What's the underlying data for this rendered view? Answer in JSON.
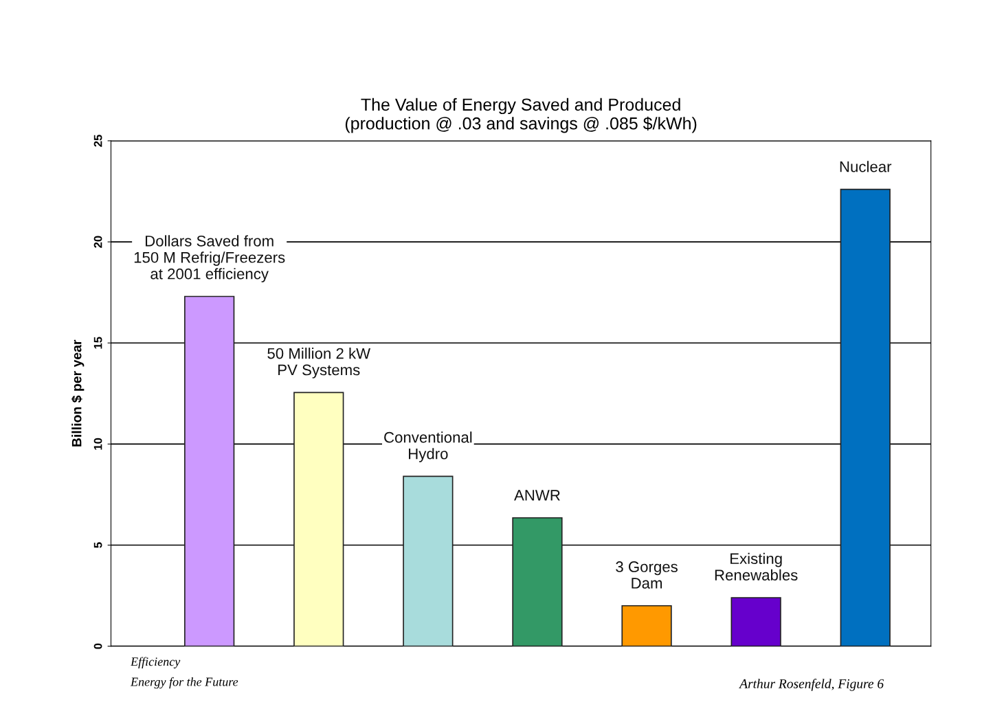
{
  "chart_data": {
    "type": "bar",
    "title": "The Value of Energy Saved and Produced\n(production @ .03 and savings @ .085 $/kWh)",
    "ylabel": "Billion $ per year",
    "categories": [
      "Dollars Saved from\n150 M Refrig/Freezers\nat 2001 efficiency",
      "50 Million 2 kW\nPV Systems",
      "Conventional\nHydro",
      "ANWR",
      "3 Gorges\nDam",
      "Existing\nRenewables",
      "Nuclear"
    ],
    "values": [
      17.3,
      12.55,
      8.4,
      6.35,
      2.0,
      2.4,
      22.6
    ],
    "colors": [
      "#cc99ff",
      "#ffffc0",
      "#a8dcdc",
      "#339966",
      "#ff9900",
      "#6600cc",
      "#0070c0"
    ],
    "ylim": [
      0,
      25
    ],
    "yticks": [
      0,
      5,
      10,
      15,
      20,
      25
    ],
    "grid": "y",
    "annotations": [
      "Efficiency\nEnergy for the Future",
      "Arthur Rosenfeld, Figure 6"
    ]
  }
}
